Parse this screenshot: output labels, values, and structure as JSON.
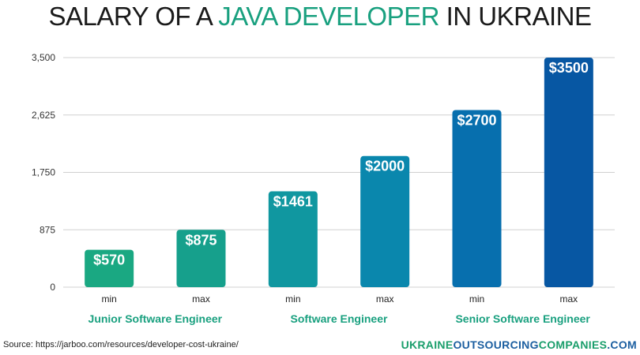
{
  "header": {
    "title_part1": "SALARY OF A ",
    "title_accent": "JAVA DEVELOPER",
    "title_part2": " IN UKRAINE"
  },
  "colors": {
    "accent": "#19a07f",
    "brand_green": "#1a9e6b",
    "brand_blue": "#1c5fa0",
    "group_label": "#19a07f"
  },
  "chart_data": {
    "type": "bar",
    "title": "SALARY OF A JAVA DEVELOPER IN UKRAINE",
    "categories": [
      "min",
      "max",
      "min",
      "max",
      "min",
      "max"
    ],
    "groups": [
      {
        "label": "Junior Software Engineer",
        "members": [
          0,
          1
        ]
      },
      {
        "label": "Software Engineer",
        "members": [
          2,
          3
        ]
      },
      {
        "label": "Senior Software Engineer",
        "members": [
          4,
          5
        ]
      }
    ],
    "values": [
      570,
      875,
      1461,
      2000,
      2700,
      3500
    ],
    "data_labels": [
      "$570",
      "$875",
      "$1461",
      "$2000",
      "$2700",
      "$3500"
    ],
    "bar_colors": [
      "#1aa882",
      "#16a08c",
      "#1097a0",
      "#0a87ad",
      "#076fae",
      "#0757a3"
    ],
    "yticks": [
      0,
      875,
      1750,
      2625,
      3500
    ],
    "ytick_labels": [
      "0",
      "875",
      "1,750",
      "2,625",
      "3,500"
    ],
    "ylim": [
      0,
      3500
    ],
    "grid": true,
    "xlabel": "",
    "ylabel": ""
  },
  "footer": {
    "source": "Source: https://jarboo.com/resources/developer-cost-ukraine/",
    "brand_part1": "UKRAINE",
    "brand_part2": "OUTSOURCING",
    "brand_part3": "COMPANIES",
    "brand_part4": ".COM"
  }
}
